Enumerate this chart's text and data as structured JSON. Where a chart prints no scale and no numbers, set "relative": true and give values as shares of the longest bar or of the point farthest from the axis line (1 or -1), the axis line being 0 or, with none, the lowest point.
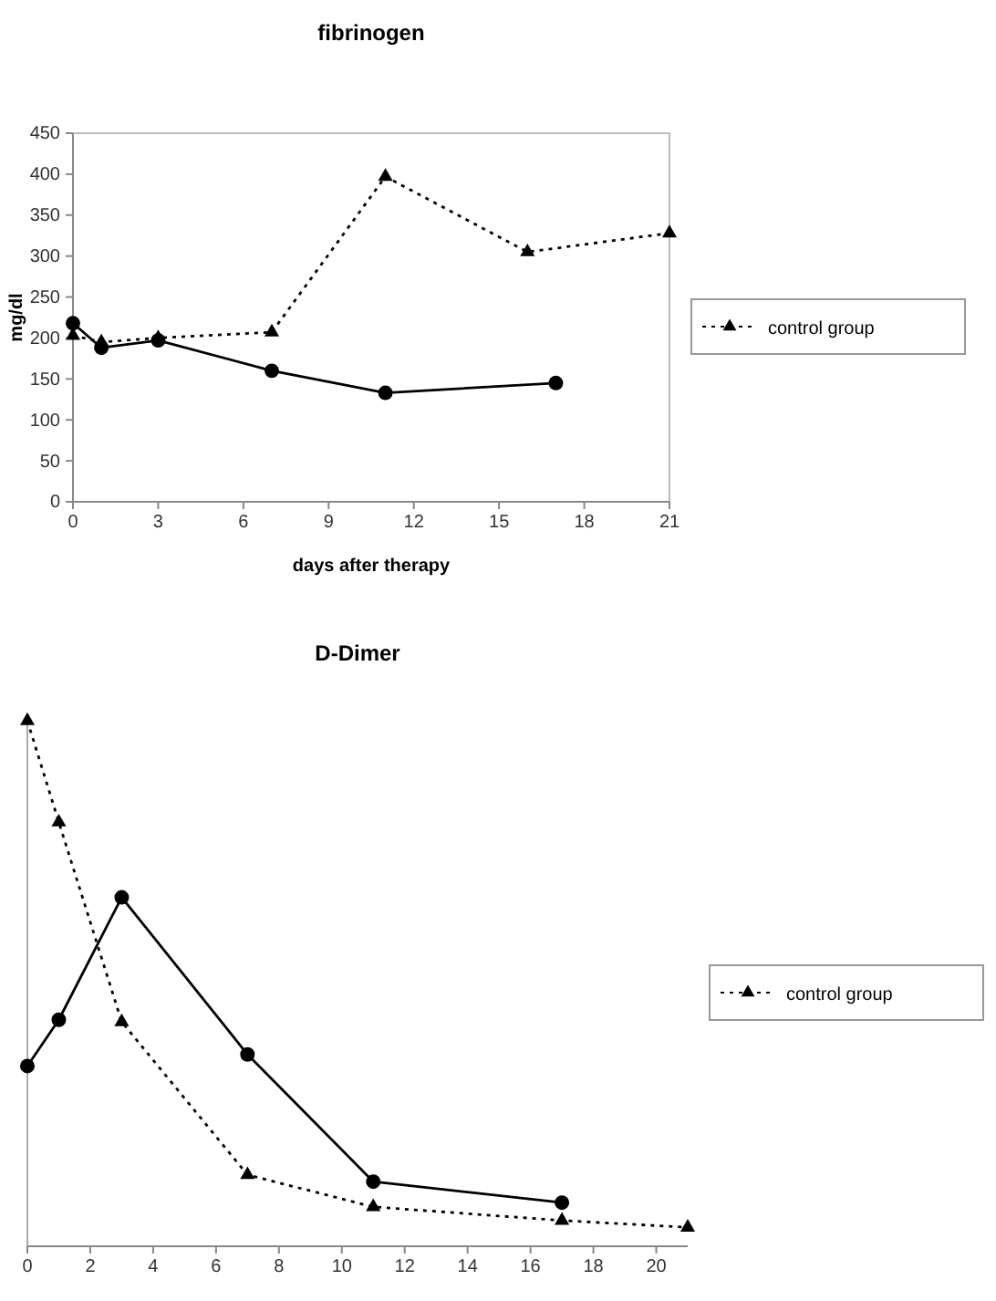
{
  "chart_data": [
    {
      "type": "line",
      "title": "fibrinogen",
      "xlabel": "days after therapy",
      "ylabel": "mg/dl",
      "xlim": [
        0,
        21
      ],
      "xticks": [
        0,
        3,
        6,
        9,
        12,
        15,
        18,
        21
      ],
      "ylim": [
        0,
        450
      ],
      "yticks": [
        0,
        50,
        100,
        150,
        200,
        250,
        300,
        350,
        400,
        450
      ],
      "legend": "right",
      "grid": false,
      "series": [
        {
          "color": "#000000",
          "marker": "circle",
          "line_style": "solid",
          "x": [
            0,
            1,
            3,
            7,
            11,
            17
          ],
          "values": [
            218,
            188,
            197,
            160,
            133,
            145
          ]
        },
        {
          "name": "control group",
          "color": "#000000",
          "marker": "triangle",
          "line_style": "dotted",
          "x": [
            0,
            1,
            3,
            7,
            11,
            16,
            21
          ],
          "values": [
            203,
            195,
            200,
            207,
            397,
            305,
            328
          ]
        }
      ]
    },
    {
      "type": "line",
      "title": "D-Dimer",
      "relative": true,
      "tick_labels": "x",
      "xlim": [
        0,
        21
      ],
      "xticks": [
        0,
        2,
        4,
        6,
        8,
        10,
        12,
        14,
        16,
        18,
        20
      ],
      "legend": "right",
      "grid": false,
      "series": [
        {
          "color": "#000000",
          "marker": "circle",
          "line_style": "solid",
          "x": [
            0,
            1,
            3,
            7,
            11,
            17
          ],
          "values": [
            0.343,
            0.431,
            0.664,
            0.365,
            0.123,
            0.083
          ]
        },
        {
          "name": "control group",
          "color": "#000000",
          "marker": "triangle",
          "line_style": "dotted",
          "x": [
            0,
            1,
            3,
            7,
            11,
            17,
            21
          ],
          "values": [
            1,
            0.807,
            0.427,
            0.136,
            0.075,
            0.049,
            0.036
          ]
        }
      ]
    }
  ]
}
